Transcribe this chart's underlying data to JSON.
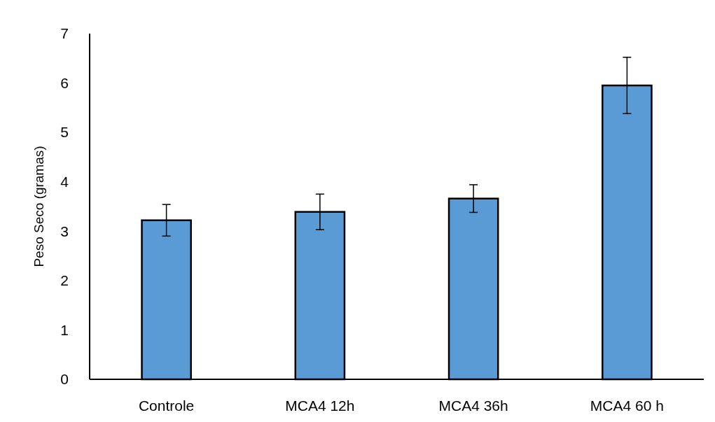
{
  "chart_data": {
    "type": "bar",
    "ylabel": "Peso Seco (gramas)",
    "categories": [
      "Controle",
      "MCA4 12h",
      "MCA4 36h",
      "MCA4 60 h"
    ],
    "values": [
      3.22,
      3.39,
      3.66,
      5.95
    ],
    "errors": [
      0.32,
      0.36,
      0.28,
      0.57
    ],
    "color": "#5b9bd5",
    "ylim": [
      0,
      7
    ],
    "yticks": [
      0,
      1,
      2,
      3,
      4,
      5,
      6,
      7
    ]
  }
}
